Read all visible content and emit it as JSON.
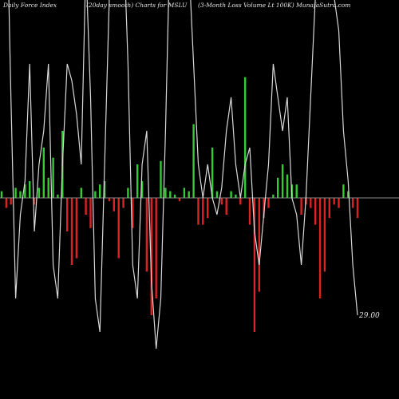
{
  "header": {
    "left": "Daily Force  Index",
    "middle": "(20day smooth) Charts for MSLU",
    "right": "(3-Month Loss Volume  Lt 100K) MunafaSutra.com"
  },
  "chart_data": {
    "type": "bar",
    "title": "Daily Force  Index",
    "subtitle": "(20day smooth) Charts for MSLU",
    "note": "(3-Month Loss Volume  Lt 100K) MunafaSutra.com",
    "bars": [
      2,
      -3,
      -2,
      3,
      2,
      4,
      5,
      -2,
      3,
      15,
      6,
      12,
      1,
      20,
      -10,
      -20,
      -18,
      3,
      -5,
      -9,
      2,
      4,
      5,
      -1,
      -4,
      -18,
      -3,
      3,
      -9,
      10,
      5,
      -22,
      -35,
      -30,
      11,
      3,
      2,
      1,
      -1,
      3,
      2,
      22,
      -8,
      -8,
      -6,
      15,
      2,
      -2,
      -5,
      2,
      1,
      -2,
      36,
      -8,
      -40,
      -28,
      -6,
      -3,
      1,
      6,
      10,
      7,
      4,
      4,
      -5,
      -2,
      -3,
      -8,
      -30,
      -22,
      -6,
      -2,
      -3,
      4,
      2,
      -3,
      -6
    ],
    "line": [
      80,
      95,
      30,
      -30,
      -5,
      5,
      40,
      -10,
      10,
      20,
      40,
      -20,
      -30,
      10,
      40,
      35,
      25,
      10,
      70,
      30,
      -30,
      -40,
      10,
      60,
      90,
      100,
      80,
      40,
      -20,
      -30,
      10,
      20,
      -25,
      -45,
      -30,
      20,
      80,
      90,
      85,
      90,
      70,
      40,
      10,
      0,
      10,
      0,
      -5,
      3,
      20,
      30,
      10,
      0,
      10,
      15,
      -10,
      -20,
      -5,
      10,
      40,
      30,
      20,
      30,
      0,
      -5,
      -20,
      0,
      30,
      60,
      95,
      85,
      75,
      60,
      50,
      20,
      5,
      -20,
      -35
    ],
    "ylim": [
      -50,
      50
    ],
    "zero_line_color": "#888888",
    "positive_color": "#33cc33",
    "negative_color": "#dd2222",
    "line_color": "#d8d8d8",
    "last_value_label": "29.00",
    "grid": false
  }
}
